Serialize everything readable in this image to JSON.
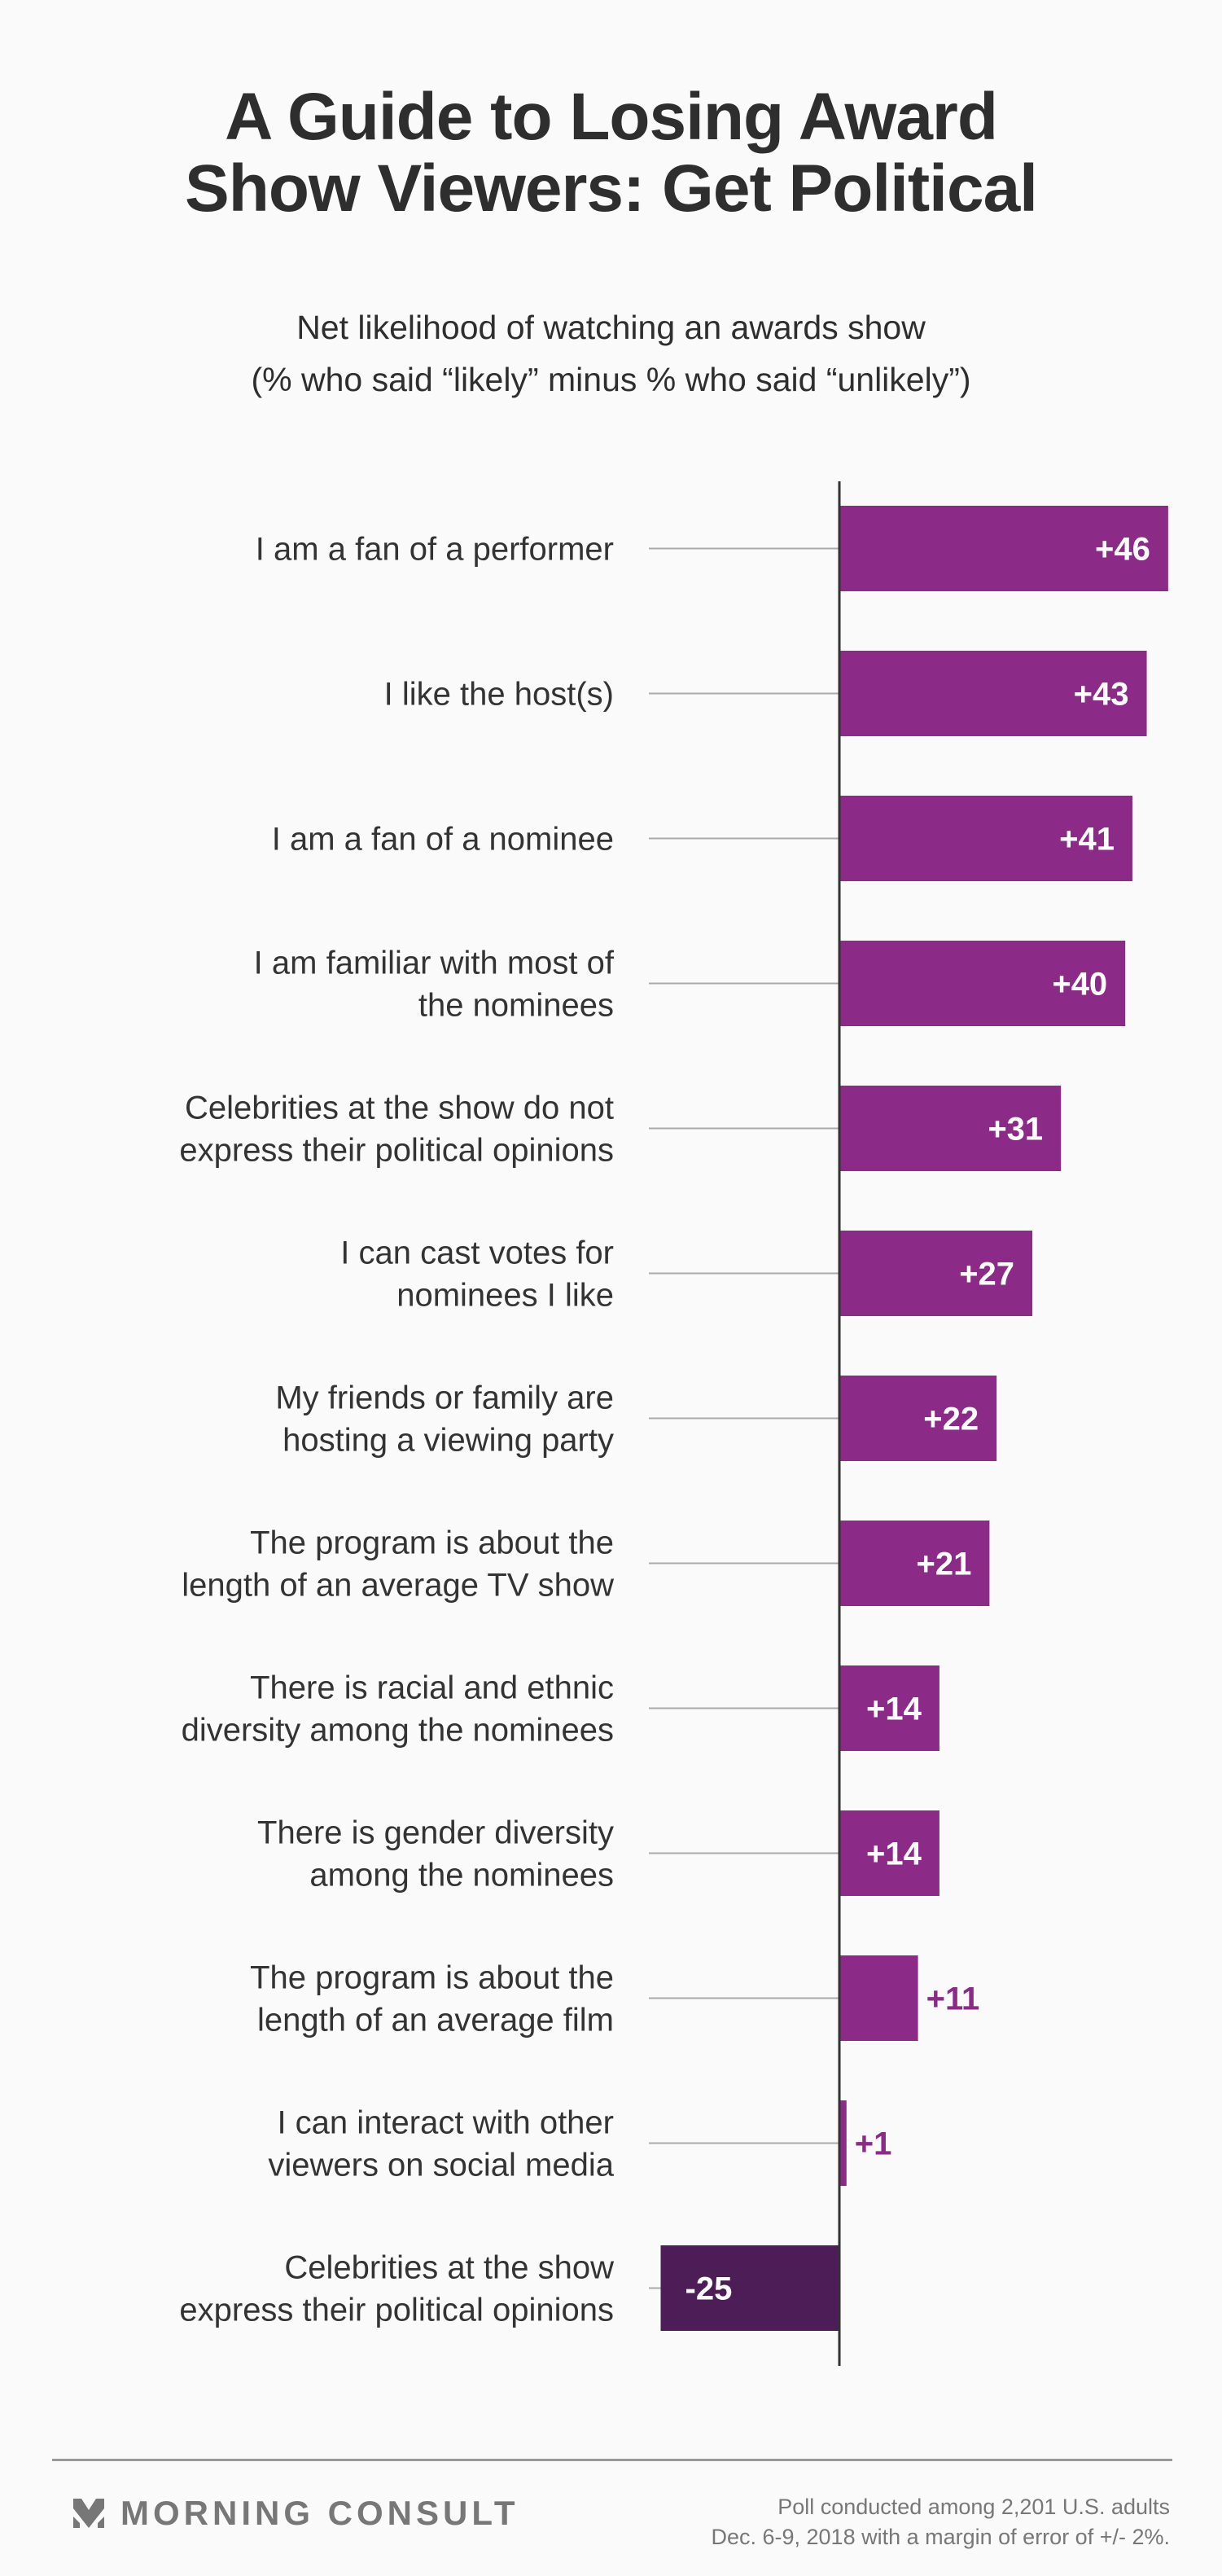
{
  "title": [
    "A Guide to Losing Award",
    "Show Viewers: Get Political"
  ],
  "subtitle": [
    "Net likelihood of watching an awards show",
    "(% who said “likely” minus % who said “unlikely”)"
  ],
  "chart_data": {
    "type": "bar",
    "orientation": "horizontal",
    "title": "A Guide to Losing Award Show Viewers: Get Political",
    "subtitle": "Net likelihood of watching an awards show (% who said “likely” minus % who said “unlikely”)",
    "categories": [
      [
        "I am a fan of a performer"
      ],
      [
        "I like the host(s)"
      ],
      [
        "I am a fan of a nominee"
      ],
      [
        "I am familiar with most of",
        "the nominees"
      ],
      [
        "Celebrities at the show do not",
        "express their political opinions"
      ],
      [
        "I can cast votes for",
        "nominees I like"
      ],
      [
        "My friends or family are",
        "hosting a viewing party"
      ],
      [
        "The program is about the",
        "length of an average TV show"
      ],
      [
        "There is racial and ethnic",
        "diversity among the nominees"
      ],
      [
        "There is gender diversity",
        "among the nominees"
      ],
      [
        "The program is about the",
        "length of an average film"
      ],
      [
        "I can interact with other",
        "viewers on social media"
      ],
      [
        "Celebrities at the show",
        "express their political opinions"
      ]
    ],
    "values": [
      46,
      43,
      41,
      40,
      31,
      27,
      22,
      21,
      14,
      14,
      11,
      1,
      -25
    ],
    "labels": [
      "+46",
      "+43",
      "+41",
      "+40",
      "+31",
      "+27",
      "+22",
      "+21",
      "+14",
      "+14",
      "+11",
      "+1",
      "-25"
    ],
    "xlim": [
      -25,
      46
    ],
    "grid": false,
    "colors": {
      "positive": "#8b2a87",
      "negative": "#4d1d57",
      "axis": "#333333",
      "tick": "#aaaaaa"
    }
  },
  "footer": {
    "brand": "MORNING CONSULT",
    "note": [
      "Poll conducted among 2,201 U.S. adults",
      "Dec. 6-9, 2018 with a margin of error of +/- 2%."
    ]
  }
}
